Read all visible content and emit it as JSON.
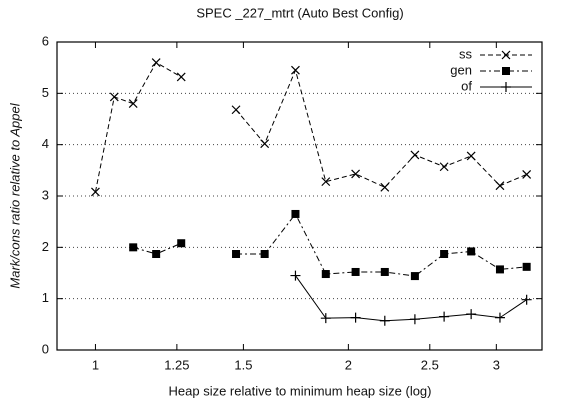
{
  "chart_data": {
    "type": "line",
    "title": "SPEC _227_mtrt (Auto Best Config)",
    "x_label": "Heap size relative to minimum heap size (log)",
    "y_label": "Mark/cons ratio relative to Appel",
    "x": [
      1.0,
      1.053,
      1.109,
      1.181,
      1.265,
      null,
      1.47,
      1.59,
      1.73,
      1.88,
      2.04,
      2.21,
      2.4,
      2.6,
      2.8,
      3.03,
      3.26
    ],
    "series": [
      {
        "name": "ss",
        "color": "#000000",
        "marker": "x",
        "dash": "dashed",
        "values": [
          3.08,
          4.93,
          4.8,
          5.6,
          5.32,
          null,
          4.68,
          4.02,
          5.45,
          3.28,
          3.43,
          3.17,
          3.8,
          3.57,
          3.78,
          3.2,
          3.42
        ]
      },
      {
        "name": "gen",
        "color": "#000000",
        "marker": "square",
        "dash": "dashdot",
        "values": [
          null,
          null,
          2.0,
          1.87,
          2.08,
          null,
          1.87,
          1.87,
          2.65,
          1.48,
          1.52,
          1.52,
          1.44,
          1.87,
          1.92,
          1.57,
          1.62
        ]
      },
      {
        "name": "of",
        "color": "#000000",
        "marker": "plus",
        "dash": "solid",
        "values": [
          null,
          null,
          null,
          null,
          null,
          null,
          null,
          null,
          1.45,
          0.62,
          0.63,
          0.57,
          0.6,
          0.65,
          0.7,
          0.63,
          0.98
        ]
      }
    ],
    "xscale": "log",
    "xlim": [
      0.9,
      3.4
    ],
    "xticks": [
      1,
      1.25,
      1.5,
      2,
      2.5,
      3
    ],
    "ylim": [
      0,
      6
    ],
    "yticks": [
      0,
      1,
      2,
      3,
      4,
      5,
      6
    ],
    "grid": true,
    "legend": "upper right"
  }
}
